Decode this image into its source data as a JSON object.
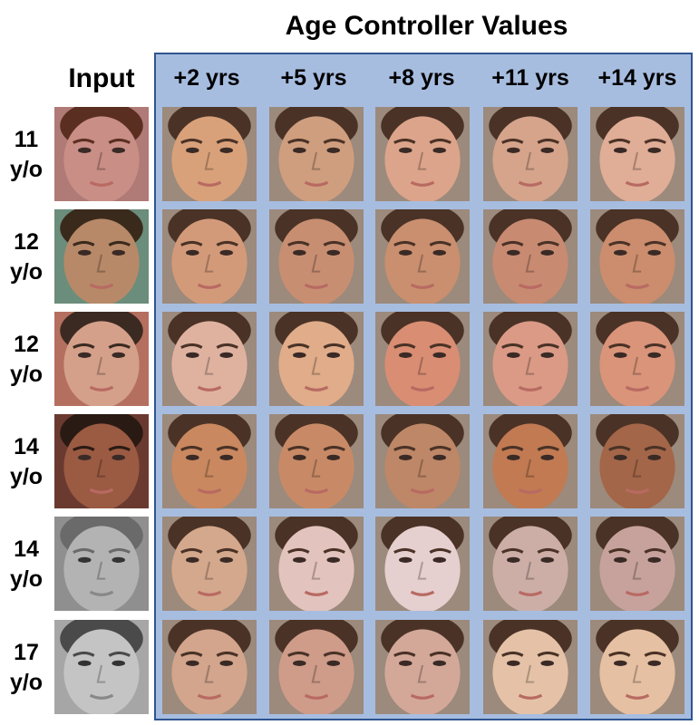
{
  "title": "Age Controller Values",
  "input_header": "Input",
  "columns": [
    "+2 yrs",
    "+5 yrs",
    "+8 yrs",
    "+11 yrs",
    "+14 yrs"
  ],
  "rows": [
    {
      "age_num": "11",
      "age_unit": "y/o",
      "input_skin": "#c98e86",
      "input_bg": "#b07a76",
      "input_hair": "#5b2e22",
      "input_gray": false,
      "outputs": [
        "#d9a17a",
        "#cf9e7e",
        "#dca48a",
        "#d5a48b",
        "#e0ad96"
      ]
    },
    {
      "age_num": "12",
      "age_unit": "y/o",
      "input_skin": "#b78968",
      "input_bg": "#6b8d7b",
      "input_hair": "#3a2a1c",
      "input_gray": false,
      "outputs": [
        "#d39a7a",
        "#c88e72",
        "#c98f6f",
        "#c98a72",
        "#cb8d6d"
      ]
    },
    {
      "age_num": "12",
      "age_unit": "y/o",
      "input_skin": "#d4a08a",
      "input_bg": "#b56f5f",
      "input_hair": "#3b2a22",
      "input_gray": false,
      "outputs": [
        "#dfb2a0",
        "#e0ac89",
        "#d98d73",
        "#da9a86",
        "#d9947a"
      ]
    },
    {
      "age_num": "14",
      "age_unit": "y/o",
      "input_skin": "#9b5a42",
      "input_bg": "#6a3a30",
      "input_hair": "#2a1a14",
      "input_gray": false,
      "outputs": [
        "#c9885f",
        "#c88a66",
        "#be8767",
        "#c17a52",
        "#a36648"
      ]
    },
    {
      "age_num": "14",
      "age_unit": "y/o",
      "input_skin": "#b3b3b3",
      "input_bg": "#8f8f8f",
      "input_hair": "#6a6a6a",
      "input_gray": true,
      "outputs": [
        "#d4a88c",
        "#e3c3bd",
        "#e6cfcf",
        "#ccaea7",
        "#c7a29c"
      ]
    },
    {
      "age_num": "17",
      "age_unit": "y/o",
      "input_skin": "#c4c4c4",
      "input_bg": "#a6a6a6",
      "input_hair": "#4a4a4a",
      "input_gray": true,
      "outputs": [
        "#d2a58c",
        "#cf9c89",
        "#d3a899",
        "#e5c2a7",
        "#e6c0a2"
      ]
    }
  ],
  "colors": {
    "panel_fill": "#a7bde0",
    "panel_border": "#2f5590"
  }
}
